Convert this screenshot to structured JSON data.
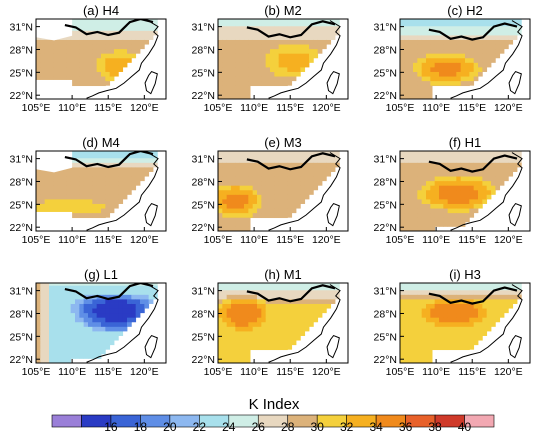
{
  "figure": {
    "colorbar_title": "K Index"
  },
  "chart_data": {
    "type": "heatmap",
    "title": "",
    "xlim": [
      105,
      123
    ],
    "ylim": [
      21.5,
      32
    ],
    "x_ticks": [
      105,
      110,
      115,
      120
    ],
    "x_tick_labels": [
      "105°E",
      "110°E",
      "115°E",
      "120°E"
    ],
    "y_ticks": [
      22,
      25,
      28,
      31
    ],
    "y_tick_labels": [
      "22°N",
      "25°N",
      "28°N",
      "31°N"
    ],
    "colorbar": {
      "label": "K Index",
      "levels": [
        14,
        16,
        18,
        20,
        22,
        24,
        26,
        28,
        30,
        32,
        34,
        36,
        38,
        40,
        42
      ],
      "tick_labels": [
        "16",
        "18",
        "20",
        "22",
        "24",
        "26",
        "28",
        "30",
        "32",
        "34",
        "36",
        "38",
        "40"
      ],
      "colors": [
        "#9a7fd8",
        "#2a3bc4",
        "#3a64d6",
        "#5f8ee6",
        "#8db8f0",
        "#a8e0ec",
        "#cfeee6",
        "#e8d8c0",
        "#dcb27a",
        "#f4d03c",
        "#f6b020",
        "#f08a1c",
        "#e8612a",
        "#cf3a2a",
        "#f2a8b2"
      ]
    },
    "panels": [
      {
        "label": "(a) H4",
        "center": [
          116.5,
          25.8
        ],
        "spread": [
          4.0,
          2.6
        ],
        "peak": 35.5,
        "base": 30,
        "north_band": 26,
        "mask": [
          [
            108,
            30
          ],
          [
            109.5,
            30
          ],
          [
            109.5,
            29
          ],
          [
            111,
            29
          ],
          [
            111,
            27.5
          ],
          [
            112,
            27.5
          ],
          [
            112,
            28.5
          ],
          [
            116,
            29.3
          ],
          [
            119,
            30
          ],
          [
            120.5,
            31
          ],
          [
            121,
            32
          ],
          [
            108,
            32
          ],
          [
            106,
            32
          ],
          [
            106,
            30
          ],
          [
            108,
            30
          ]
        ]
      },
      {
        "label": "(b) M2",
        "center": [
          115.5,
          26.5
        ],
        "spread": [
          5.0,
          2.8
        ],
        "peak": 35,
        "base": 30,
        "north_band": 27,
        "mask": []
      },
      {
        "label": "(c) H2",
        "center": [
          111.5,
          25.5
        ],
        "spread": [
          5.5,
          2.5
        ],
        "peak": 37,
        "base": 30,
        "north_band": 24,
        "mask": []
      },
      {
        "label": "(d) M4",
        "center": [
          109.5,
          24.7
        ],
        "spread": [
          6.0,
          1.2
        ],
        "peak": 34,
        "base": 31,
        "north_band": 25,
        "mask": []
      },
      {
        "label": "(e) M3",
        "center": [
          107.5,
          25.5
        ],
        "spread": [
          4.0,
          2.5
        ],
        "peak": 37,
        "base": 31,
        "north_band": 28.5,
        "mask": []
      },
      {
        "label": "(f) H1",
        "center": [
          113.0,
          26.5
        ],
        "spread": [
          6.0,
          2.6
        ],
        "peak": 37.5,
        "base": 31,
        "north_band": 29,
        "mask": []
      },
      {
        "label": "(g) L1",
        "center": [
          116.0,
          28.5
        ],
        "spread": [
          6.0,
          3.0
        ],
        "peak": 16,
        "base": 24,
        "north_band": 26,
        "mask": []
      },
      {
        "label": "(h) M1",
        "center": [
          108.5,
          28.0
        ],
        "spread": [
          4.0,
          2.6
        ],
        "peak": 38,
        "base": 32,
        "north_band": 26,
        "mask": []
      },
      {
        "label": "(i) H3",
        "center": [
          112.5,
          28.2
        ],
        "spread": [
          5.0,
          2.2
        ],
        "peak": 38,
        "base": 33,
        "north_band": 27,
        "mask": []
      }
    ]
  }
}
